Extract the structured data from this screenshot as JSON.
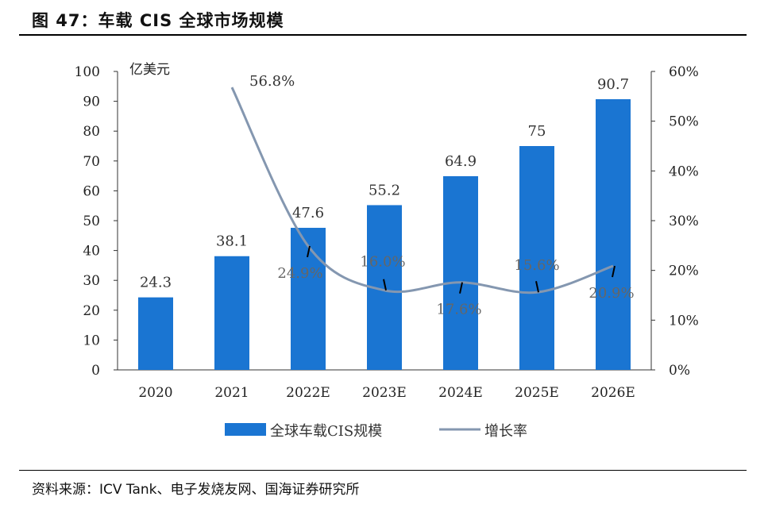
{
  "title": "图 47：车载 CIS 全球市场规模",
  "source": "资料来源：ICV Tank、电子发烧友网、国海证券研究所",
  "chart_data": {
    "type": "bar",
    "categories": [
      "2020",
      "2021",
      "2022E",
      "2023E",
      "2024E",
      "2025E",
      "2026E"
    ],
    "series": [
      {
        "name": "全球车载CIS规模",
        "type": "bar",
        "axis": "left",
        "values": [
          24.3,
          38.1,
          47.6,
          55.2,
          64.9,
          75,
          90.7
        ],
        "labels": [
          "24.3",
          "38.1",
          "47.6",
          "55.2",
          "64.9",
          "75",
          "90.7"
        ],
        "color": "#1a75d2"
      },
      {
        "name": "增长率",
        "type": "line",
        "axis": "right",
        "values": [
          null,
          56.8,
          24.9,
          16.0,
          17.6,
          15.6,
          20.9
        ],
        "labels": [
          "",
          "56.8%",
          "24.9%",
          "16.0%",
          "17.6%",
          "15.6%",
          "20.9%"
        ],
        "color": "#8497b0"
      }
    ],
    "yunit": "亿美元",
    "ylim": [
      0,
      100
    ],
    "yticks": [
      "0",
      "10",
      "20",
      "30",
      "40",
      "50",
      "60",
      "70",
      "80",
      "90",
      "100"
    ],
    "y2lim": [
      0,
      60
    ],
    "y2ticks": [
      "0%",
      "10%",
      "20%",
      "30%",
      "40%",
      "50%",
      "60%"
    ],
    "grid": false,
    "legend": "bottom"
  }
}
